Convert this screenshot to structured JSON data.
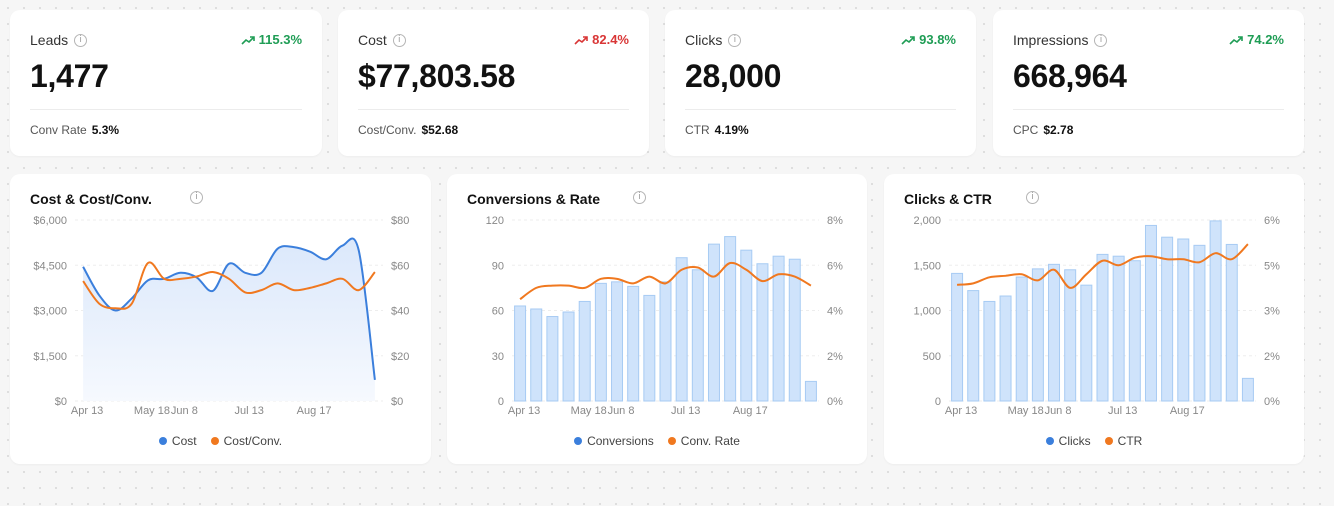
{
  "colors": {
    "up": "#1f9d55",
    "down": "#d93636",
    "blue": "#3b7fdc",
    "orange": "#f0781f",
    "bar_fill": "#cfe3fb",
    "bar_stroke": "#a7cbf3"
  },
  "kpis": [
    {
      "label": "Leads",
      "change": "115.3%",
      "direction": "up",
      "value": "1,477",
      "sub_label": "Conv Rate",
      "sub_value": "5.3%"
    },
    {
      "label": "Cost",
      "change": "82.4%",
      "direction": "down",
      "value": "$77,803.58",
      "sub_label": "Cost/Conv.",
      "sub_value": "$52.68"
    },
    {
      "label": "Clicks",
      "change": "93.8%",
      "direction": "up",
      "value": "28,000",
      "sub_label": "CTR",
      "sub_value": "4.19%"
    },
    {
      "label": "Impressions",
      "change": "74.2%",
      "direction": "up",
      "value": "668,964",
      "sub_label": "CPC",
      "sub_value": "$2.78"
    }
  ],
  "info_icon": "i",
  "trend_icon": "trend-arrow-icon",
  "chart_data": [
    {
      "type": "area",
      "title": "Cost & Cost/Conv.",
      "x_ticks": [
        "Apr 13",
        "May 18",
        "Jun 8",
        "Jul 13",
        "Aug 17"
      ],
      "left_ticks": [
        "$0",
        "$1,500",
        "$3,000",
        "$4,500",
        "$6,000"
      ],
      "right_ticks": [
        "$0",
        "$20",
        "$40",
        "$60",
        "$80"
      ],
      "left_ylim": [
        0,
        6000
      ],
      "right_ylim": [
        0,
        80
      ],
      "series": [
        {
          "name": "Cost",
          "axis": "left",
          "color": "#3b7fdc",
          "values": [
            4450,
            3500,
            3000,
            3400,
            4000,
            4050,
            4250,
            4100,
            3650,
            4550,
            4250,
            4250,
            5050,
            5100,
            4950,
            4700,
            5150,
            5000,
            700
          ]
        },
        {
          "name": "Cost/Conv.",
          "axis": "right",
          "color": "#f0781f",
          "values": [
            53,
            43,
            41,
            43,
            61,
            54,
            54,
            55,
            57,
            54,
            48,
            49,
            52,
            49,
            50,
            52,
            54,
            49,
            57
          ]
        }
      ]
    },
    {
      "type": "bar",
      "title": "Conversions & Rate",
      "x_ticks": [
        "Apr 13",
        "May 18",
        "Jun 8",
        "Jul 13",
        "Aug 17"
      ],
      "left_ticks": [
        "0",
        "30",
        "60",
        "90",
        "120"
      ],
      "right_ticks": [
        "0%",
        "2%",
        "4%",
        "6%",
        "8%"
      ],
      "left_ylim": [
        0,
        120
      ],
      "right_ylim": [
        0,
        8
      ],
      "series": [
        {
          "name": "Conversions",
          "axis": "left",
          "color": "#3b7fdc",
          "values": [
            63,
            61,
            56,
            59,
            66,
            78,
            79,
            76,
            70,
            79,
            95,
            87,
            104,
            109,
            100,
            91,
            96,
            94,
            13
          ]
        },
        {
          "name": "Conv. Rate",
          "axis": "right",
          "color": "#f0781f",
          "values": [
            4.5,
            5.0,
            5.1,
            5.1,
            5.0,
            5.4,
            5.4,
            5.2,
            5.5,
            5.2,
            5.8,
            5.9,
            5.5,
            6.1,
            5.8,
            5.3,
            5.6,
            5.5,
            5.1
          ]
        }
      ]
    },
    {
      "type": "bar",
      "title": "Clicks & CTR",
      "x_ticks": [
        "Apr 13",
        "May 18",
        "Jun 8",
        "Jul 13",
        "Aug 17"
      ],
      "left_ticks": [
        "0",
        "500",
        "1,000",
        "1,500",
        "2,000"
      ],
      "right_ticks": [
        "0%",
        "2%",
        "3%",
        "5%",
        "6%"
      ],
      "left_ylim": [
        0,
        2000
      ],
      "right_ylim": [
        0,
        6
      ],
      "series": [
        {
          "name": "Clicks",
          "axis": "left",
          "color": "#3b7fdc",
          "values": [
            1410,
            1220,
            1100,
            1160,
            1370,
            1460,
            1510,
            1450,
            1280,
            1620,
            1600,
            1550,
            1940,
            1810,
            1790,
            1720,
            1990,
            1730,
            250
          ]
        },
        {
          "name": "CTR",
          "axis": "right",
          "color": "#f0781f",
          "values": [
            3.85,
            3.9,
            4.1,
            4.15,
            4.2,
            4.0,
            4.35,
            3.75,
            4.2,
            4.65,
            4.5,
            4.75,
            4.8,
            4.7,
            4.7,
            4.6,
            4.9,
            4.7,
            5.2
          ]
        }
      ]
    }
  ]
}
